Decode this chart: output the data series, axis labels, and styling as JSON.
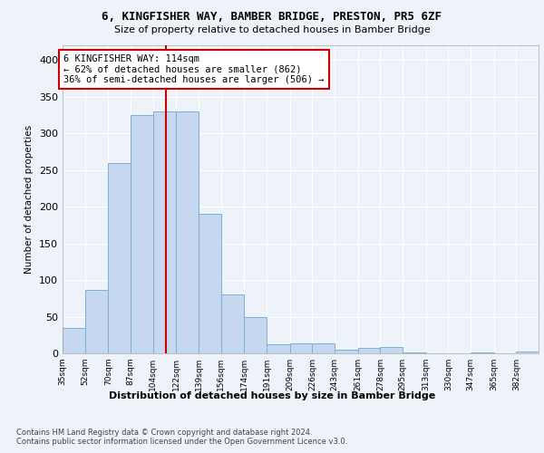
{
  "title1": "6, KINGFISHER WAY, BAMBER BRIDGE, PRESTON, PR5 6ZF",
  "title2": "Size of property relative to detached houses in Bamber Bridge",
  "xlabel": "Distribution of detached houses by size in Bamber Bridge",
  "ylabel": "Number of detached properties",
  "bar_left_edges": [
    35,
    52,
    70,
    87,
    104,
    122,
    139,
    156,
    174,
    191,
    209,
    226,
    243,
    261,
    278,
    295,
    313,
    330,
    347,
    365,
    382
  ],
  "bar_heights": [
    35,
    87,
    260,
    325,
    330,
    330,
    190,
    80,
    50,
    12,
    13,
    13,
    5,
    7,
    9,
    1,
    0,
    0,
    1,
    0,
    3
  ],
  "bar_color": "#c5d8f0",
  "bar_edge_color": "#7bafd4",
  "vline_x": 114,
  "vline_color": "#cc0000",
  "annotation_text": "6 KINGFISHER WAY: 114sqm\n← 62% of detached houses are smaller (862)\n36% of semi-detached houses are larger (506) →",
  "annotation_box_color": "white",
  "annotation_box_edge": "#cc0000",
  "tick_labels": [
    "35sqm",
    "52sqm",
    "70sqm",
    "87sqm",
    "104sqm",
    "122sqm",
    "139sqm",
    "156sqm",
    "174sqm",
    "191sqm",
    "209sqm",
    "226sqm",
    "243sqm",
    "261sqm",
    "278sqm",
    "295sqm",
    "313sqm",
    "330sqm",
    "347sqm",
    "365sqm",
    "382sqm"
  ],
  "yticks": [
    0,
    50,
    100,
    150,
    200,
    250,
    300,
    350,
    400
  ],
  "ylim": [
    0,
    420
  ],
  "background_color": "#eef3f9",
  "grid_color": "white",
  "footer": "Contains HM Land Registry data © Crown copyright and database right 2024.\nContains public sector information licensed under the Open Government Licence v3.0."
}
